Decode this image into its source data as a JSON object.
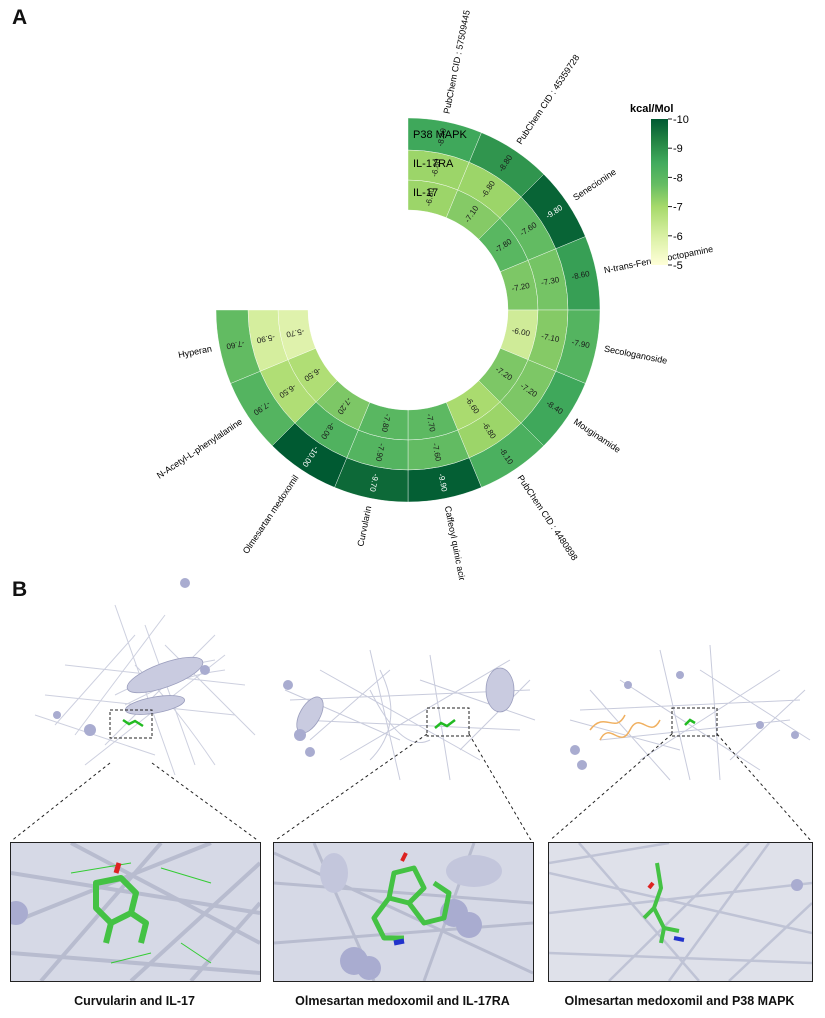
{
  "panels": {
    "a": "A",
    "b": "B"
  },
  "chart_data": {
    "type": "heatmap",
    "subtype": "circular",
    "rings": [
      "IL-17",
      "IL-17RA",
      "P38 MAPK"
    ],
    "compounds": [
      "PubChem CID : 57509445",
      "PubChem CID : 45359728",
      "Senecionine",
      "N-trans-Feruloyloctopamine",
      "Secologanoside",
      "Mouginamide",
      "PubChem CID : 4480898",
      "Caffeoyl quinic acid",
      "Curvularin",
      "Olmesartan medoxomil",
      "N-Acetyl-L-phenylalanine",
      "Hyperan"
    ],
    "values": [
      [
        -6.8,
        -6.8,
        -8.4
      ],
      [
        -7.1,
        -6.8,
        -8.8
      ],
      [
        -7.8,
        -7.6,
        -9.8
      ],
      [
        -7.2,
        -7.3,
        -8.6
      ],
      [
        -6.0,
        -7.1,
        -7.9
      ],
      [
        -7.2,
        -7.2,
        -8.4
      ],
      [
        -6.6,
        -6.8,
        -8.1
      ],
      [
        -7.7,
        -7.6,
        -9.9
      ],
      [
        -7.8,
        -7.9,
        -9.7
      ],
      [
        -7.2,
        -8.0,
        -10.0
      ],
      [
        -6.5,
        -6.5,
        -7.9
      ],
      [
        -5.7,
        -5.9,
        -7.6
      ]
    ],
    "value_labels": [
      [
        "-6.80",
        "-6.80",
        "-8.40"
      ],
      [
        "-7.10",
        "-6.80",
        "-8.80"
      ],
      [
        "-7.80",
        "-7.60",
        "-9.80"
      ],
      [
        "-7.20",
        "-7.30",
        "-8.60"
      ],
      [
        "-6.00",
        "-7.10",
        "-7.90"
      ],
      [
        "-7.20",
        "-7.20",
        "-8.40"
      ],
      [
        "-6.60",
        "-6.80",
        "-8.10"
      ],
      [
        "-7.70",
        "-7.60",
        "-9.90"
      ],
      [
        "-7.80",
        "-7.90",
        "-9.70"
      ],
      [
        "-7.20",
        "-8.00",
        "-10.00"
      ],
      [
        "-6.50",
        "-6.50",
        "-7.90"
      ],
      [
        "-5.70",
        "-5.90",
        "-7.60"
      ]
    ],
    "colorbar": {
      "title": "kcal/Mol",
      "min": -5,
      "max": -10,
      "ticks": [
        "-5",
        "-6",
        "-7",
        "-8",
        "-9",
        "-10"
      ],
      "colors": [
        "#ffffd9",
        "#d9f0a3",
        "#a6d96a",
        "#66bd63",
        "#41ab5d",
        "#238443",
        "#005a32"
      ]
    }
  },
  "structures": [
    {
      "caption": "Curvularin and IL-17"
    },
    {
      "caption": "Olmesartan medoxomil and IL-17RA"
    },
    {
      "caption": "Olmesartan medoxomil and P38 MAPK"
    }
  ]
}
